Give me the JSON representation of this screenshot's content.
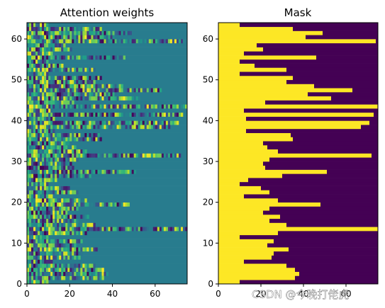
{
  "chart_data": [
    {
      "type": "heatmap",
      "title": "Attention weights",
      "xlim": [
        0,
        75
      ],
      "ylim": [
        0,
        64
      ],
      "xticks": [
        0,
        20,
        40,
        60
      ],
      "yticks": [
        0,
        10,
        20,
        30,
        40,
        50,
        60
      ],
      "rows": 64,
      "cols": 75,
      "colormap": "viridis",
      "row_lengths": [
        10,
        36,
        38,
        36,
        32,
        12,
        25,
        26,
        33,
        23,
        26,
        10,
        28,
        75,
        32,
        24,
        29,
        21,
        24,
        48,
        28,
        12,
        24,
        20,
        10,
        14,
        30,
        51,
        22,
        21,
        24,
        72,
        28,
        23,
        21,
        35,
        34,
        13,
        67,
        71,
        13,
        73,
        12,
        75,
        22,
        53,
        42,
        63,
        45,
        32,
        35,
        10,
        32,
        17,
        10,
        46,
        12,
        21,
        18,
        74,
        41,
        49,
        35,
        10
      ]
    },
    {
      "type": "heatmap",
      "title": "Mask",
      "xlim": [
        0,
        75
      ],
      "ylim": [
        0,
        64
      ],
      "xticks": [
        0,
        20,
        40,
        60
      ],
      "yticks": [
        0,
        10,
        20,
        30,
        40,
        50,
        60
      ],
      "rows": 64,
      "cols": 75,
      "colormap": "viridis",
      "values": [
        0,
        1
      ],
      "colors": [
        "#440154",
        "#fde725"
      ]
    }
  ],
  "watermark": "CSDN @今晚打佬虎"
}
